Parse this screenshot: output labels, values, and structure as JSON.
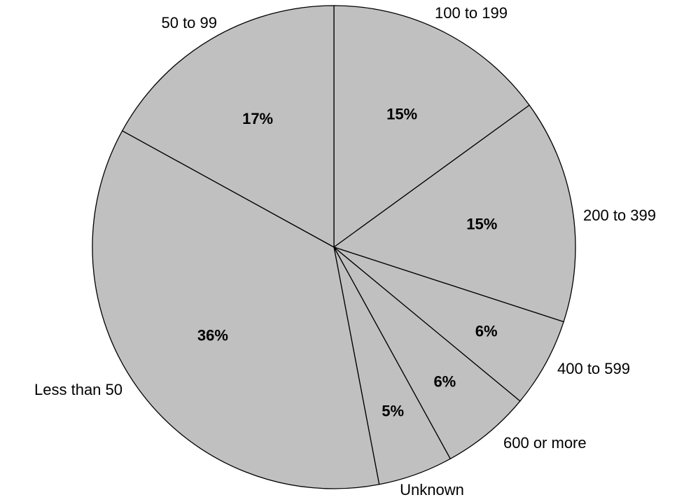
{
  "chart_data": {
    "type": "pie",
    "title": "",
    "slices": [
      {
        "label": "100 to 199",
        "value": 15,
        "display": "15%"
      },
      {
        "label": "200 to 399",
        "value": 15,
        "display": "15%"
      },
      {
        "label": "400 to 599",
        "value": 6,
        "display": "6%"
      },
      {
        "label": "600 or more",
        "value": 6,
        "display": "6%"
      },
      {
        "label": "Unknown",
        "value": 5,
        "display": "5%"
      },
      {
        "label": "Less than 50",
        "value": 36,
        "display": "36%"
      },
      {
        "label": "50 to 99",
        "value": 17,
        "display": "17%"
      }
    ],
    "start_angle_deg": 0,
    "direction": "clockwise",
    "slice_color": "#c0c0c0",
    "edge_color": "#000000",
    "legend": "none"
  }
}
